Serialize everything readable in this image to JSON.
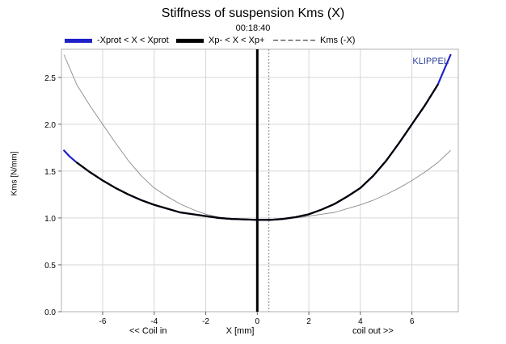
{
  "chart_data": {
    "type": "line",
    "title": "Stiffness of suspension Kms (X)",
    "subtitle": "00:18:40",
    "xlabel": "X [mm]",
    "ylabel": "Kms [N/mm]",
    "x_caption_left": "<< Coil in",
    "x_caption_right": "coil out >>",
    "watermark": "KLIPPEL",
    "xlim": [
      -7.6,
      7.8
    ],
    "ylim": [
      0.0,
      2.8
    ],
    "x_ticks": [
      -6,
      -4,
      -2,
      0,
      2,
      4,
      6
    ],
    "y_ticks": [
      "0.0",
      "0.5",
      "1.0",
      "1.5",
      "2.0",
      "2.5"
    ],
    "grid": true,
    "legend_position": "top",
    "vertical_markers": [
      {
        "x": 0.0,
        "style": "solid",
        "color": "#000000"
      },
      {
        "x": 0.45,
        "style": "dotted",
        "color": "#888888"
      }
    ],
    "series": [
      {
        "name": "-Xprot < X < Xprot",
        "color": "#1f1fc8",
        "x": [
          -7.5,
          -7.3,
          -7.0,
          -6.5,
          -6.0,
          -5.5,
          -5.0,
          -4.5,
          -4.0,
          -3.5,
          -3.0,
          -2.5,
          -2.0,
          -1.5,
          -1.0,
          -0.5,
          0.0,
          0.5,
          1.0,
          1.5,
          2.0,
          2.5,
          3.0,
          3.5,
          4.0,
          4.5,
          5.0,
          5.5,
          6.0,
          6.5,
          7.0,
          7.2,
          7.5
        ],
        "y": [
          1.72,
          1.66,
          1.59,
          1.49,
          1.4,
          1.32,
          1.25,
          1.19,
          1.14,
          1.1,
          1.06,
          1.04,
          1.02,
          1.0,
          0.99,
          0.985,
          0.98,
          0.98,
          0.99,
          1.01,
          1.04,
          1.09,
          1.15,
          1.23,
          1.32,
          1.45,
          1.61,
          1.8,
          2.0,
          2.2,
          2.42,
          2.55,
          2.74
        ]
      },
      {
        "name": "Xp- < X < Xp+",
        "color": "#000000",
        "x": [
          -7.0,
          -6.5,
          -6.0,
          -5.5,
          -5.0,
          -4.5,
          -4.0,
          -3.5,
          -3.0,
          -2.5,
          -2.0,
          -1.5,
          -1.0,
          -0.5,
          0.0,
          0.5,
          1.0,
          1.5,
          2.0,
          2.5,
          3.0,
          3.5,
          4.0,
          4.5,
          5.0,
          5.5,
          6.0,
          6.5,
          7.0
        ],
        "y": [
          1.59,
          1.49,
          1.4,
          1.32,
          1.25,
          1.19,
          1.14,
          1.1,
          1.06,
          1.04,
          1.02,
          1.0,
          0.99,
          0.985,
          0.98,
          0.98,
          0.99,
          1.01,
          1.04,
          1.09,
          1.15,
          1.23,
          1.32,
          1.45,
          1.61,
          1.8,
          2.0,
          2.2,
          2.42
        ]
      },
      {
        "name": "Kms (-X)",
        "color": "#8a8a8a",
        "x": [
          -7.5,
          -7.0,
          -6.5,
          -6.0,
          -5.5,
          -5.0,
          -4.5,
          -4.0,
          -3.5,
          -3.0,
          -2.5,
          -2.0,
          -1.5,
          -1.0,
          -0.5,
          0.0,
          0.5,
          1.0,
          1.5,
          2.0,
          2.5,
          3.0,
          3.5,
          4.0,
          4.5,
          5.0,
          5.5,
          6.0,
          6.5,
          7.0,
          7.5
        ],
        "y": [
          2.74,
          2.42,
          2.2,
          2.0,
          1.8,
          1.61,
          1.45,
          1.32,
          1.23,
          1.15,
          1.09,
          1.04,
          1.01,
          0.99,
          0.98,
          0.98,
          0.985,
          0.99,
          1.0,
          1.02,
          1.04,
          1.06,
          1.1,
          1.14,
          1.19,
          1.25,
          1.32,
          1.4,
          1.49,
          1.59,
          1.72
        ]
      }
    ]
  }
}
